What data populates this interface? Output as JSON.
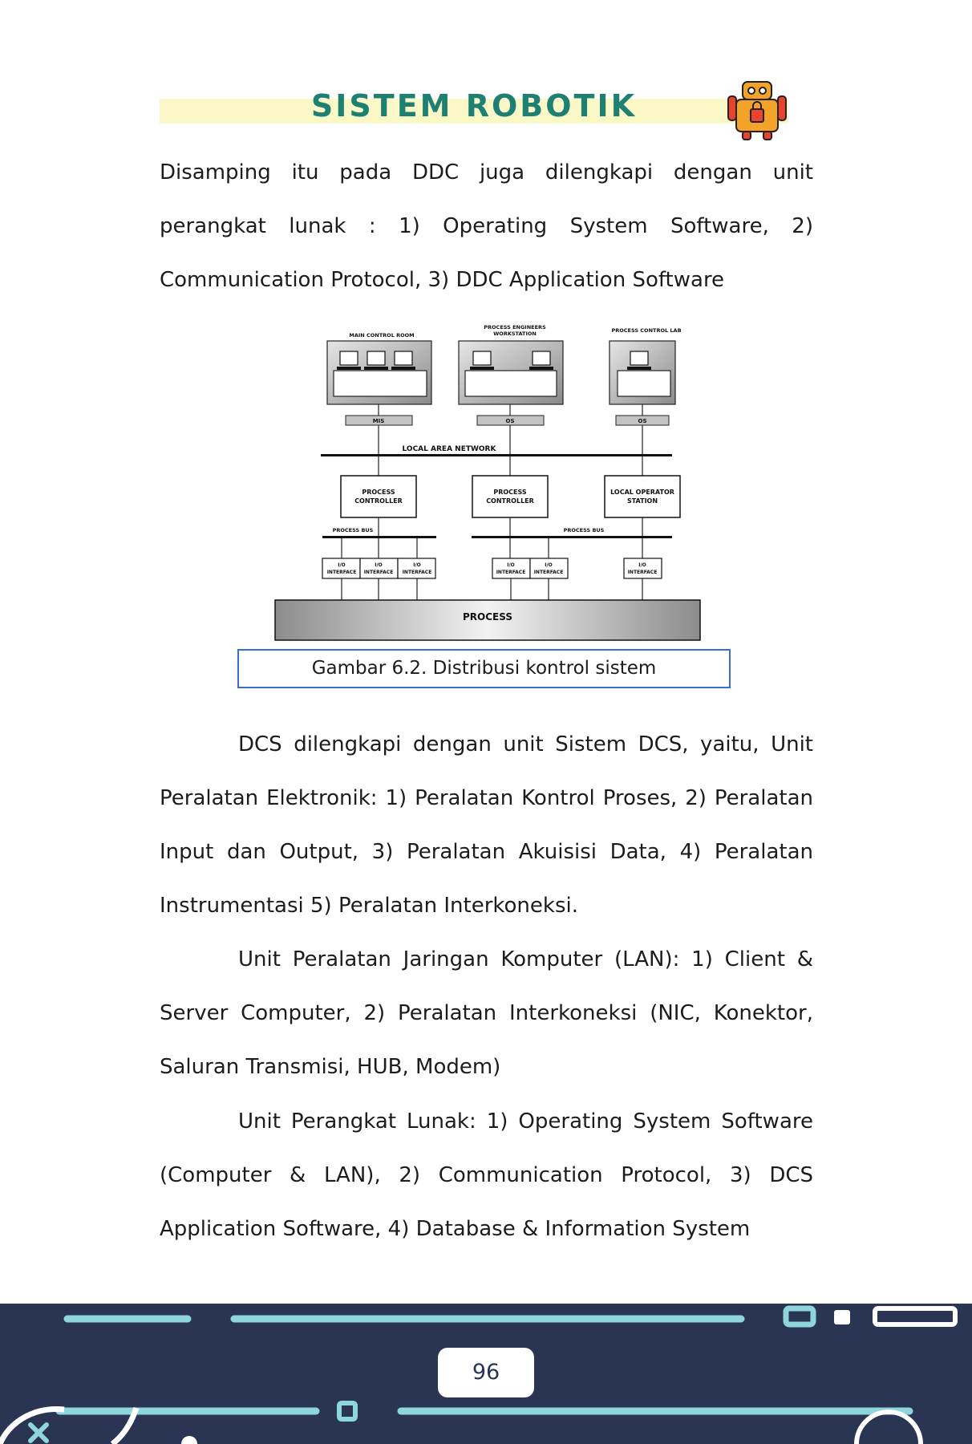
{
  "header": {
    "title": "SISTEM ROBOTIK"
  },
  "paragraphs": [
    "Disamping itu pada DDC juga dilengkapi dengan unit perangkat lunak : 1) Operating System Software, 2) Communication Protocol, 3) DDC Application Software",
    "DCS dilengkapi dengan unit Sistem DCS, yaitu, Unit Peralatan Elektronik: 1) Peralatan Kontrol Proses, 2) Peralatan Input dan Output, 3) Peralatan Akuisisi Data, 4) Peralatan Instrumentasi  5) Peralatan Interkoneksi.",
    "Unit Peralatan Jaringan Komputer (LAN): 1) Client & Server Computer, 2) Peralatan Interkoneksi (NIC, Konektor, Saluran Transmisi, HUB, Modem)",
    "Unit Perangkat Lunak: 1) Operating System Software (Computer & LAN), 2) Communication Protocol, 3) DCS Application Software, 4) Database & Information System"
  ],
  "diagram": {
    "stations": [
      "MAIN CONTROL ROOM",
      "PROCESS ENGINEERS",
      "WORKSTATION",
      "PROCESS CONTROL LAB"
    ],
    "servers": [
      "MIS",
      "OS",
      "OS"
    ],
    "network": "LOCAL AREA NETWORK",
    "controllers": [
      [
        "PROCESS",
        "CONTROLLER"
      ],
      [
        "PROCESS",
        "CONTROLLER"
      ],
      [
        "LOCAL OPERATOR",
        "STATION"
      ]
    ],
    "bus_label": "PROCESS BUS",
    "io": [
      "I/O",
      "INTERFACE"
    ],
    "process": "PROCESS"
  },
  "caption": "Gambar 6.2. Distribusi kontrol sistem",
  "footer": {
    "page_number": "96"
  }
}
